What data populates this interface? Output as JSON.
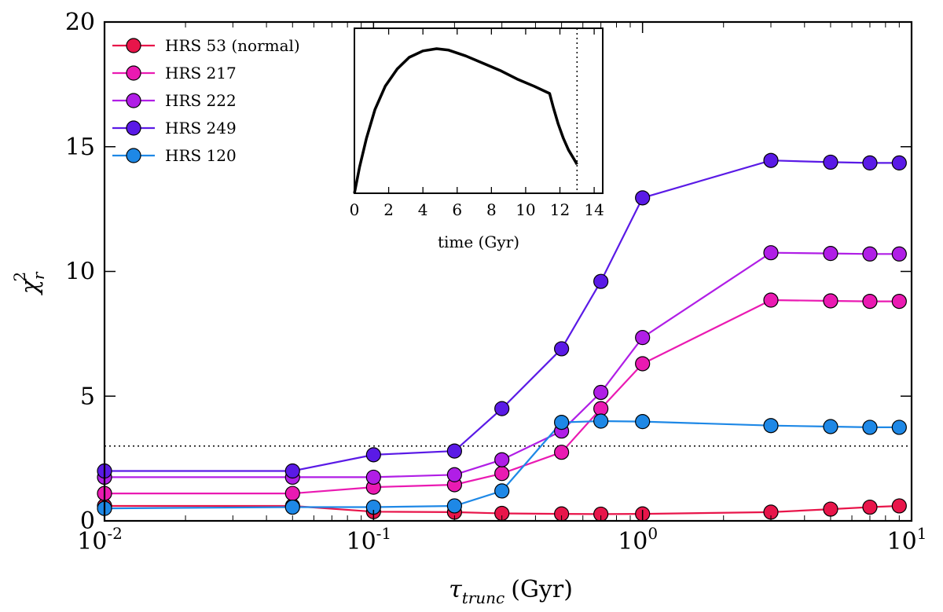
{
  "chart_data": [
    {
      "type": "line",
      "xscale": "log",
      "xlim": [
        0.01,
        10
      ],
      "ylim": [
        0,
        20
      ],
      "x_ticks": [
        {
          "value": 0.01,
          "base": "10",
          "exp": "-2"
        },
        {
          "value": 0.1,
          "base": "10",
          "exp": "-1"
        },
        {
          "value": 1,
          "base": "10",
          "exp": "0"
        },
        {
          "value": 10,
          "base": "10",
          "exp": "1"
        }
      ],
      "y_ticks": [
        {
          "value": 0,
          "label": "0"
        },
        {
          "value": 5,
          "label": "5"
        },
        {
          "value": 10,
          "label": "10"
        },
        {
          "value": 15,
          "label": "15"
        },
        {
          "value": 20,
          "label": "20"
        }
      ],
      "xlabel": {
        "symbol": "τ",
        "subscript": "trunc",
        "unit": "(Gyr)"
      },
      "ylabel": {
        "symbol": "χ",
        "superscript": "2",
        "subscript": "r"
      },
      "threshold": 3.0,
      "legend_position": "top-left",
      "x": [
        0.01,
        0.05,
        0.1,
        0.2,
        0.3,
        0.5,
        0.7,
        1.0,
        3.0,
        5.0,
        7.0,
        9.0
      ],
      "series": [
        {
          "name": "HRS 53 (normal)",
          "color": "#e8154a",
          "values": [
            0.6,
            0.6,
            0.37,
            0.35,
            0.3,
            0.28,
            0.27,
            0.28,
            0.35,
            0.47,
            0.55,
            0.6
          ]
        },
        {
          "name": "HRS 217",
          "color": "#ea1ab2",
          "values": [
            1.1,
            1.1,
            1.35,
            1.45,
            1.9,
            2.75,
            4.5,
            6.3,
            8.85,
            8.82,
            8.8,
            8.8
          ]
        },
        {
          "name": "HRS 222",
          "color": "#b01ee6",
          "values": [
            1.75,
            1.75,
            1.75,
            1.85,
            2.45,
            3.6,
            5.15,
            7.35,
            10.75,
            10.72,
            10.7,
            10.7
          ]
        },
        {
          "name": "HRS 249",
          "color": "#5a1ae6",
          "values": [
            2.0,
            2.0,
            2.65,
            2.8,
            4.5,
            6.9,
            9.6,
            12.95,
            14.45,
            14.38,
            14.35,
            14.35
          ]
        },
        {
          "name": "HRS 120",
          "color": "#1e88e6",
          "values": [
            0.5,
            0.55,
            0.55,
            0.6,
            1.2,
            3.95,
            4.0,
            3.98,
            3.82,
            3.78,
            3.75,
            3.75
          ]
        }
      ]
    },
    {
      "type": "line",
      "xlim": [
        0,
        14.5
      ],
      "ylim": [
        0,
        1
      ],
      "x_ticks": [
        0,
        2,
        4,
        6,
        8,
        10,
        12,
        14
      ],
      "xlabel": "time (Gyr)",
      "vline": 13.0,
      "x": [
        0,
        0.3,
        0.7,
        1.2,
        1.8,
        2.5,
        3.2,
        4.0,
        4.8,
        5.5,
        6.5,
        7.5,
        8.5,
        9.5,
        10.5,
        11.4,
        11.6,
        11.9,
        12.2,
        12.5,
        12.8,
        13.0
      ],
      "values": [
        0.0,
        0.18,
        0.38,
        0.58,
        0.74,
        0.86,
        0.94,
        0.985,
        1.0,
        0.99,
        0.95,
        0.9,
        0.85,
        0.79,
        0.74,
        0.69,
        0.6,
        0.48,
        0.38,
        0.3,
        0.24,
        0.2
      ]
    }
  ]
}
